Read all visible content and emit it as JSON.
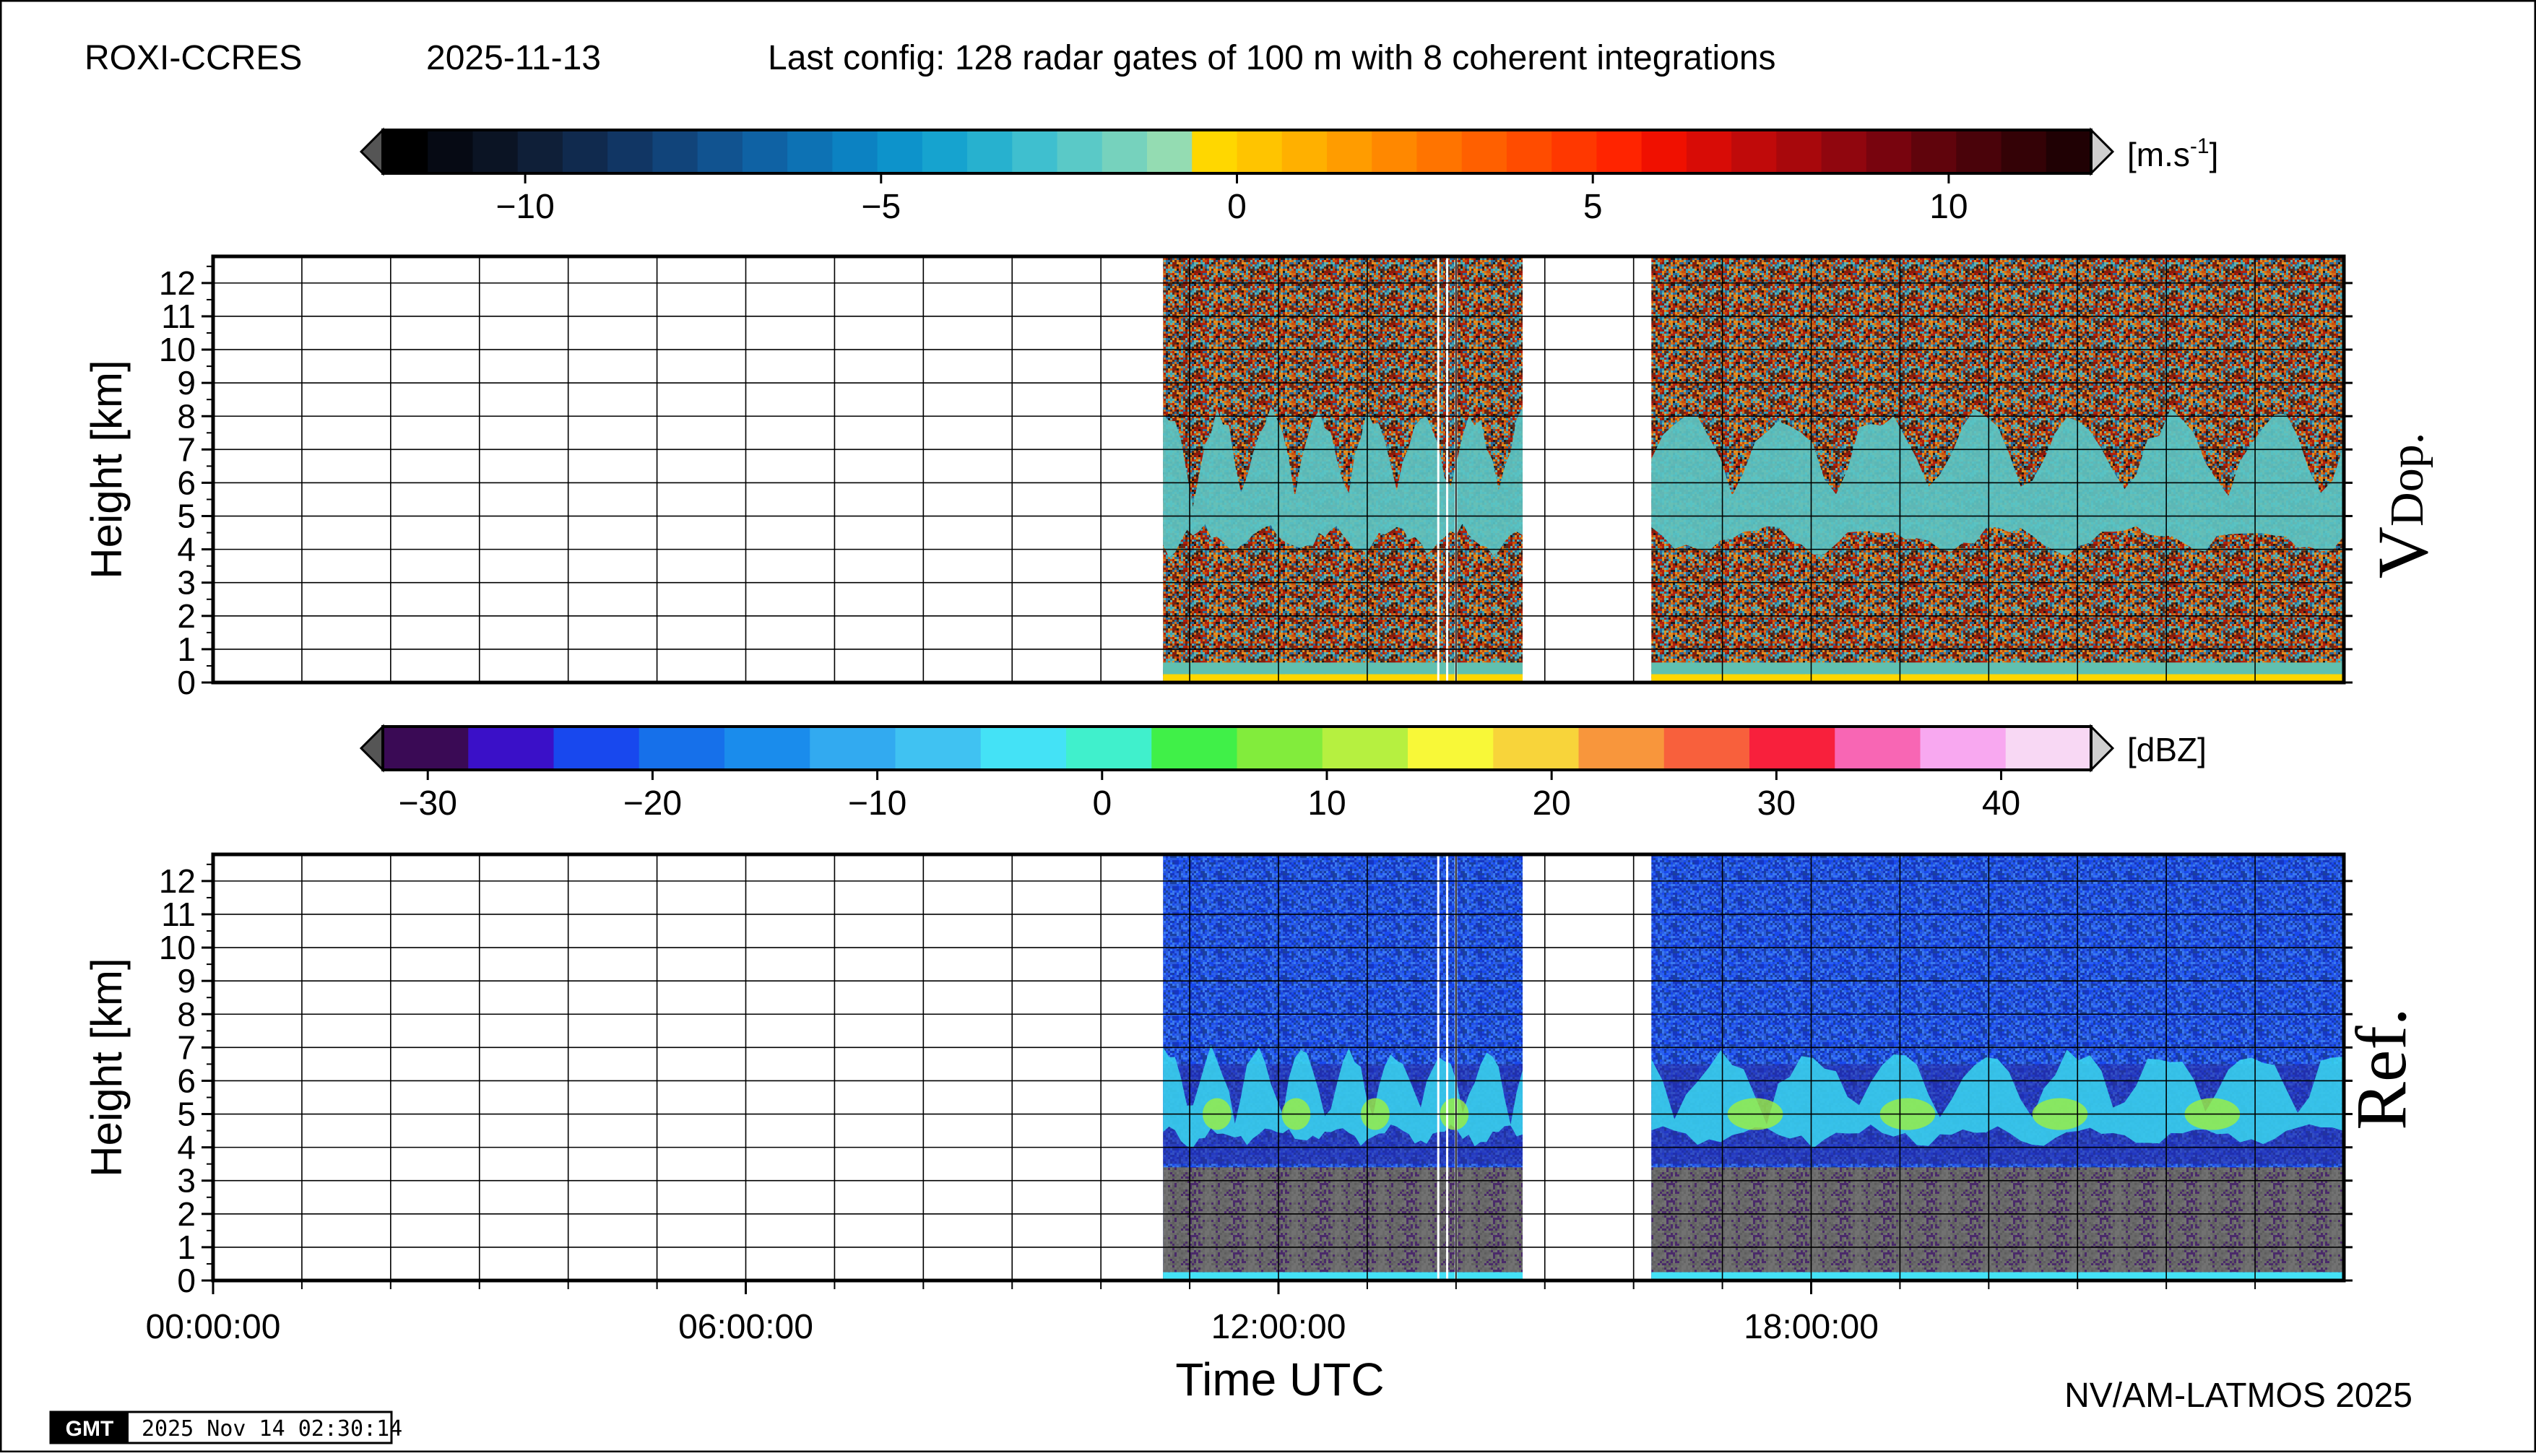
{
  "header": {
    "instrument": "ROXI-CCRES",
    "date": "2025-11-13",
    "config": "Last config: 128 radar gates of 100 m with 8 coherent integrations"
  },
  "footer": {
    "credit": "NV/AM-LATMOS 2025",
    "gmt_logo": "GMT",
    "timestamp": "2025 Nov 14 02:30:14"
  },
  "colorbars": {
    "velocity": {
      "unit_base": "[m.s",
      "unit_exp": "-1",
      "unit_close": "]",
      "min": -12,
      "max": 12,
      "ticks": [
        -10,
        -5,
        0,
        5,
        10
      ],
      "tick_labels": [
        "−10",
        "−5",
        "0",
        "5",
        "10"
      ],
      "colors": [
        "#000000",
        "#060a14",
        "#0b1424",
        "#0f1f38",
        "#102a4e",
        "#113664",
        "#11447a",
        "#115390",
        "#0f62a4",
        "#0d72b4",
        "#0c82c2",
        "#0d93cb",
        "#16a3cf",
        "#27b1cf",
        "#3fbfcf",
        "#5ac9c7",
        "#76d2bd",
        "#94dcb2",
        "#ffd700",
        "#ffc400",
        "#ffb000",
        "#ff9c00",
        "#ff8800",
        "#ff7400",
        "#ff6000",
        "#ff4c00",
        "#ff3800",
        "#ff2400",
        "#f01000",
        "#d80c06",
        "#c00a0a",
        "#a8080c",
        "#90060e",
        "#78040e",
        "#60040c",
        "#4a030a",
        "#340206",
        "#200104"
      ]
    },
    "reflectivity": {
      "unit": "[dBZ]",
      "min": -32,
      "max": 44,
      "ticks": [
        -30,
        -20,
        -10,
        0,
        10,
        20,
        30,
        40
      ],
      "tick_labels": [
        "−30",
        "−20",
        "−10",
        "0",
        "10",
        "20",
        "30",
        "40"
      ],
      "colors": [
        "#3a0a55",
        "#3a10c8",
        "#1848ee",
        "#1670ea",
        "#1a8cec",
        "#32aaf0",
        "#40c2f2",
        "#44e2f6",
        "#40f0cc",
        "#40f048",
        "#82ec3c",
        "#b6f040",
        "#f8f838",
        "#f8d43a",
        "#f8963c",
        "#f8603c",
        "#f8203c",
        "#f866b4",
        "#f8a8f0",
        "#f8d8f4"
      ]
    }
  },
  "chart_data": [
    {
      "type": "heatmap",
      "title": "V Dop.",
      "panel_label_main": "V",
      "panel_label_sub": "Dop.",
      "xlabel": "",
      "ylabel": "Height [km]",
      "xlim": [
        "00:00:00",
        "24:00:00"
      ],
      "ylim": [
        0,
        12.8
      ],
      "y_ticks": [
        "0",
        "1",
        "2",
        "3",
        "4",
        "5",
        "6",
        "7",
        "8",
        "9",
        "10",
        "11",
        "12"
      ],
      "x_tick_labels": [],
      "grid": true,
      "data_segments_utc_hours": [
        [
          10.7,
          14.75
        ],
        [
          16.2,
          24.0
        ]
      ],
      "description_values": {
        "near_surface_velocity_m_s": 0.0,
        "cloud_layer_velocity_m_s": -1.5,
        "noise": "random above/below cloud"
      }
    },
    {
      "type": "heatmap",
      "title": "Ref.",
      "panel_label_main": "Ref.",
      "xlabel": "Time UTC",
      "ylabel": "Height [km]",
      "xlim": [
        "00:00:00",
        "24:00:00"
      ],
      "ylim": [
        0,
        12.8
      ],
      "y_ticks": [
        "0",
        "1",
        "2",
        "3",
        "4",
        "5",
        "6",
        "7",
        "8",
        "9",
        "10",
        "11",
        "12"
      ],
      "x_tick_labels": [
        "00:00:00",
        "06:00:00",
        "12:00:00",
        "18:00:00"
      ],
      "x_tick_hours": [
        0,
        6,
        12,
        18
      ],
      "grid": true,
      "data_segments_utc_hours": [
        [
          10.7,
          14.75
        ],
        [
          16.2,
          24.0
        ]
      ],
      "description_values": {
        "background_dBZ": -20,
        "low_level_clutter_below_km": 3.5,
        "cloud_layer_km": [
          4,
          7
        ],
        "max_cloud_dBZ": 10
      }
    }
  ]
}
